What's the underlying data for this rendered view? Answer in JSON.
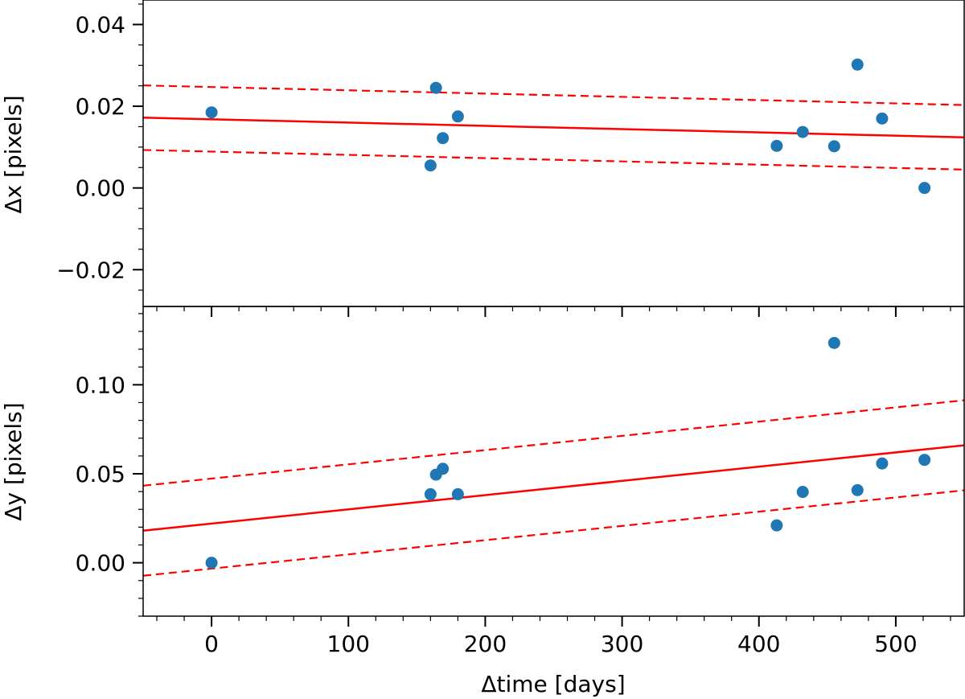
{
  "colors": {
    "points": "#1f77b4",
    "fit": "#ff0000",
    "axes": "#000000",
    "background": "#ffffff"
  },
  "chart_data": [
    {
      "type": "scatter",
      "panel": "top",
      "ylabel": "Δx [pixels]",
      "xlim": [
        -50,
        550
      ],
      "ylim": [
        -0.029,
        0.046
      ],
      "yticks": [
        -0.02,
        0.0,
        0.02,
        0.04
      ],
      "ytick_labels": [
        "−0.02",
        "0.00",
        "0.02",
        "0.04"
      ],
      "yminor_step": 0.005,
      "x": [
        0,
        160,
        164,
        169,
        180,
        413,
        432,
        455,
        472,
        490,
        521
      ],
      "y": [
        0.0185,
        0.0055,
        0.0245,
        0.0122,
        0.0175,
        0.0103,
        0.0137,
        0.0102,
        0.0302,
        0.017,
        0.0
      ],
      "fit": {
        "intercept": 0.0168,
        "slope": -8e-06
      },
      "band": 0.0079,
      "grid": false
    },
    {
      "type": "scatter",
      "panel": "bottom",
      "ylabel": "Δy [pixels]",
      "xlabel": "Δtime [days]",
      "xlim": [
        -50,
        550
      ],
      "ylim": [
        -0.03,
        0.144
      ],
      "yticks": [
        0.0,
        0.05,
        0.1
      ],
      "ytick_labels": [
        "0.00",
        "0.05",
        "0.10"
      ],
      "yminor_step": 0.01,
      "xticks": [
        0,
        100,
        200,
        300,
        400,
        500
      ],
      "xtick_labels": [
        "0",
        "100",
        "200",
        "300",
        "400",
        "500"
      ],
      "xminor_step": 20,
      "x": [
        0,
        160,
        164,
        169,
        180,
        413,
        432,
        455,
        472,
        490,
        521
      ],
      "y": [
        0.0,
        0.0385,
        0.0495,
        0.0528,
        0.0385,
        0.021,
        0.0398,
        0.1235,
        0.0408,
        0.0558,
        0.0578
      ],
      "fit": {
        "intercept": 0.022,
        "slope": 8e-05
      },
      "band": 0.0253,
      "grid": false
    }
  ]
}
